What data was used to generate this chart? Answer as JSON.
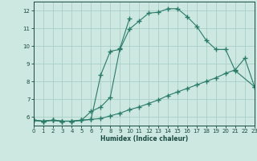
{
  "line1_x": [
    0,
    1,
    2,
    3,
    4,
    5,
    6,
    7,
    8,
    9,
    10,
    11,
    12,
    13,
    14,
    15,
    16,
    17,
    18,
    19,
    20,
    21,
    23
  ],
  "line1_y": [
    5.8,
    5.75,
    5.8,
    5.75,
    5.75,
    5.8,
    5.85,
    8.35,
    9.7,
    9.8,
    10.95,
    11.4,
    11.85,
    11.9,
    12.1,
    12.1,
    11.65,
    11.1,
    10.3,
    9.8,
    9.8,
    8.6,
    7.7
  ],
  "line2_x": [
    0,
    1,
    2,
    3,
    4,
    5,
    6,
    7,
    8,
    9,
    10,
    11,
    12,
    13,
    14,
    15,
    16,
    17,
    18,
    19,
    20,
    21,
    22,
    23
  ],
  "line2_y": [
    5.8,
    5.75,
    5.8,
    5.75,
    5.75,
    5.8,
    5.85,
    5.9,
    6.05,
    6.2,
    6.4,
    6.55,
    6.75,
    6.95,
    7.2,
    7.4,
    7.6,
    7.8,
    8.0,
    8.2,
    8.45,
    8.65,
    9.3,
    7.7
  ],
  "line3_x": [
    0,
    1,
    2,
    3,
    4,
    5,
    6,
    7,
    8,
    9,
    10
  ],
  "line3_y": [
    5.8,
    5.75,
    5.8,
    5.75,
    5.75,
    5.8,
    6.3,
    6.55,
    7.1,
    9.85,
    11.55
  ],
  "color": "#2a7a6a",
  "bg_color": "#cce8e0",
  "grid_color": "#aacfc8",
  "xlabel": "Humidex (Indice chaleur)",
  "xlim": [
    0,
    23
  ],
  "ylim": [
    5.5,
    12.5
  ],
  "yticks": [
    6,
    7,
    8,
    9,
    10,
    11,
    12
  ],
  "xticks": [
    0,
    1,
    2,
    3,
    4,
    5,
    6,
    7,
    8,
    9,
    10,
    11,
    12,
    13,
    14,
    15,
    16,
    17,
    18,
    19,
    20,
    21,
    22,
    23
  ]
}
